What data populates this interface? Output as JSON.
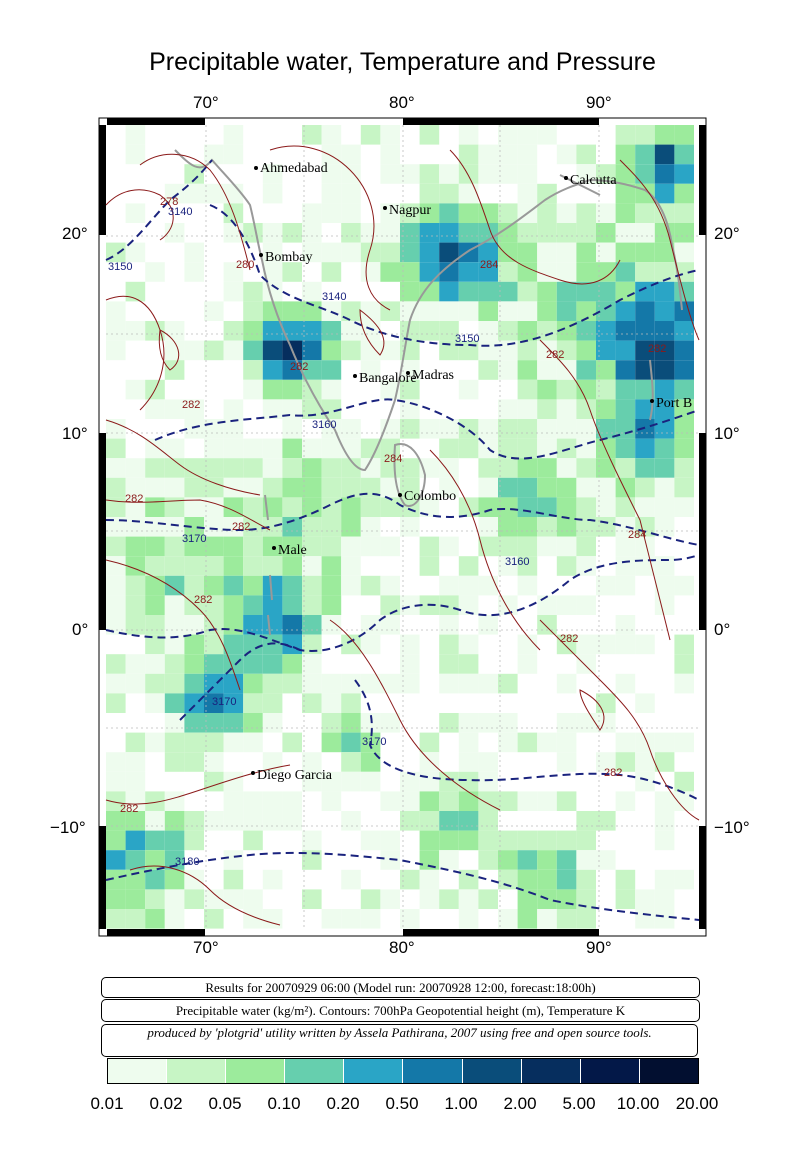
{
  "title": "Precipitable water, Temperature and Pressure",
  "axes": {
    "lon_ticks": [
      "70°",
      "80°",
      "90°"
    ],
    "lat_ticks": [
      "20°",
      "10°",
      "0°",
      "−10°"
    ]
  },
  "cities": [
    "Ahmedabad",
    "Nagpur",
    "Calcutta",
    "Bombay",
    "Bangalore",
    "Madras",
    "Port B",
    "Colombo",
    "Male",
    "Diego Garcia"
  ],
  "contour_labels": [
    "3140",
    "3150",
    "3160",
    "3170",
    "3180",
    "278",
    "280",
    "282",
    "284"
  ],
  "info": {
    "run_line": "Results for 20070929 06:00 (Model run: 20070928 12:00, forecast:18:00h)",
    "var_line": "Precipitable water (kg/m²).  Contours: 700hPa Geopotential height (m), Temperature K",
    "credit_line": "produced by 'plotgrid' utility written by Assela Pathirana, 2007 using free and open source tools."
  },
  "colorbar": {
    "labels": [
      "0.01",
      "0.02",
      "0.05",
      "0.10",
      "0.20",
      "0.50",
      "1.00",
      "2.00",
      "5.00",
      "10.00",
      "20.00"
    ],
    "colors": [
      "#eefcee",
      "#c7f5c5",
      "#9ceb9c",
      "#66cfae",
      "#2aa5c6",
      "#1478a8",
      "#0a4d7a",
      "#062e5e",
      "#031848",
      "#020f30"
    ]
  }
}
